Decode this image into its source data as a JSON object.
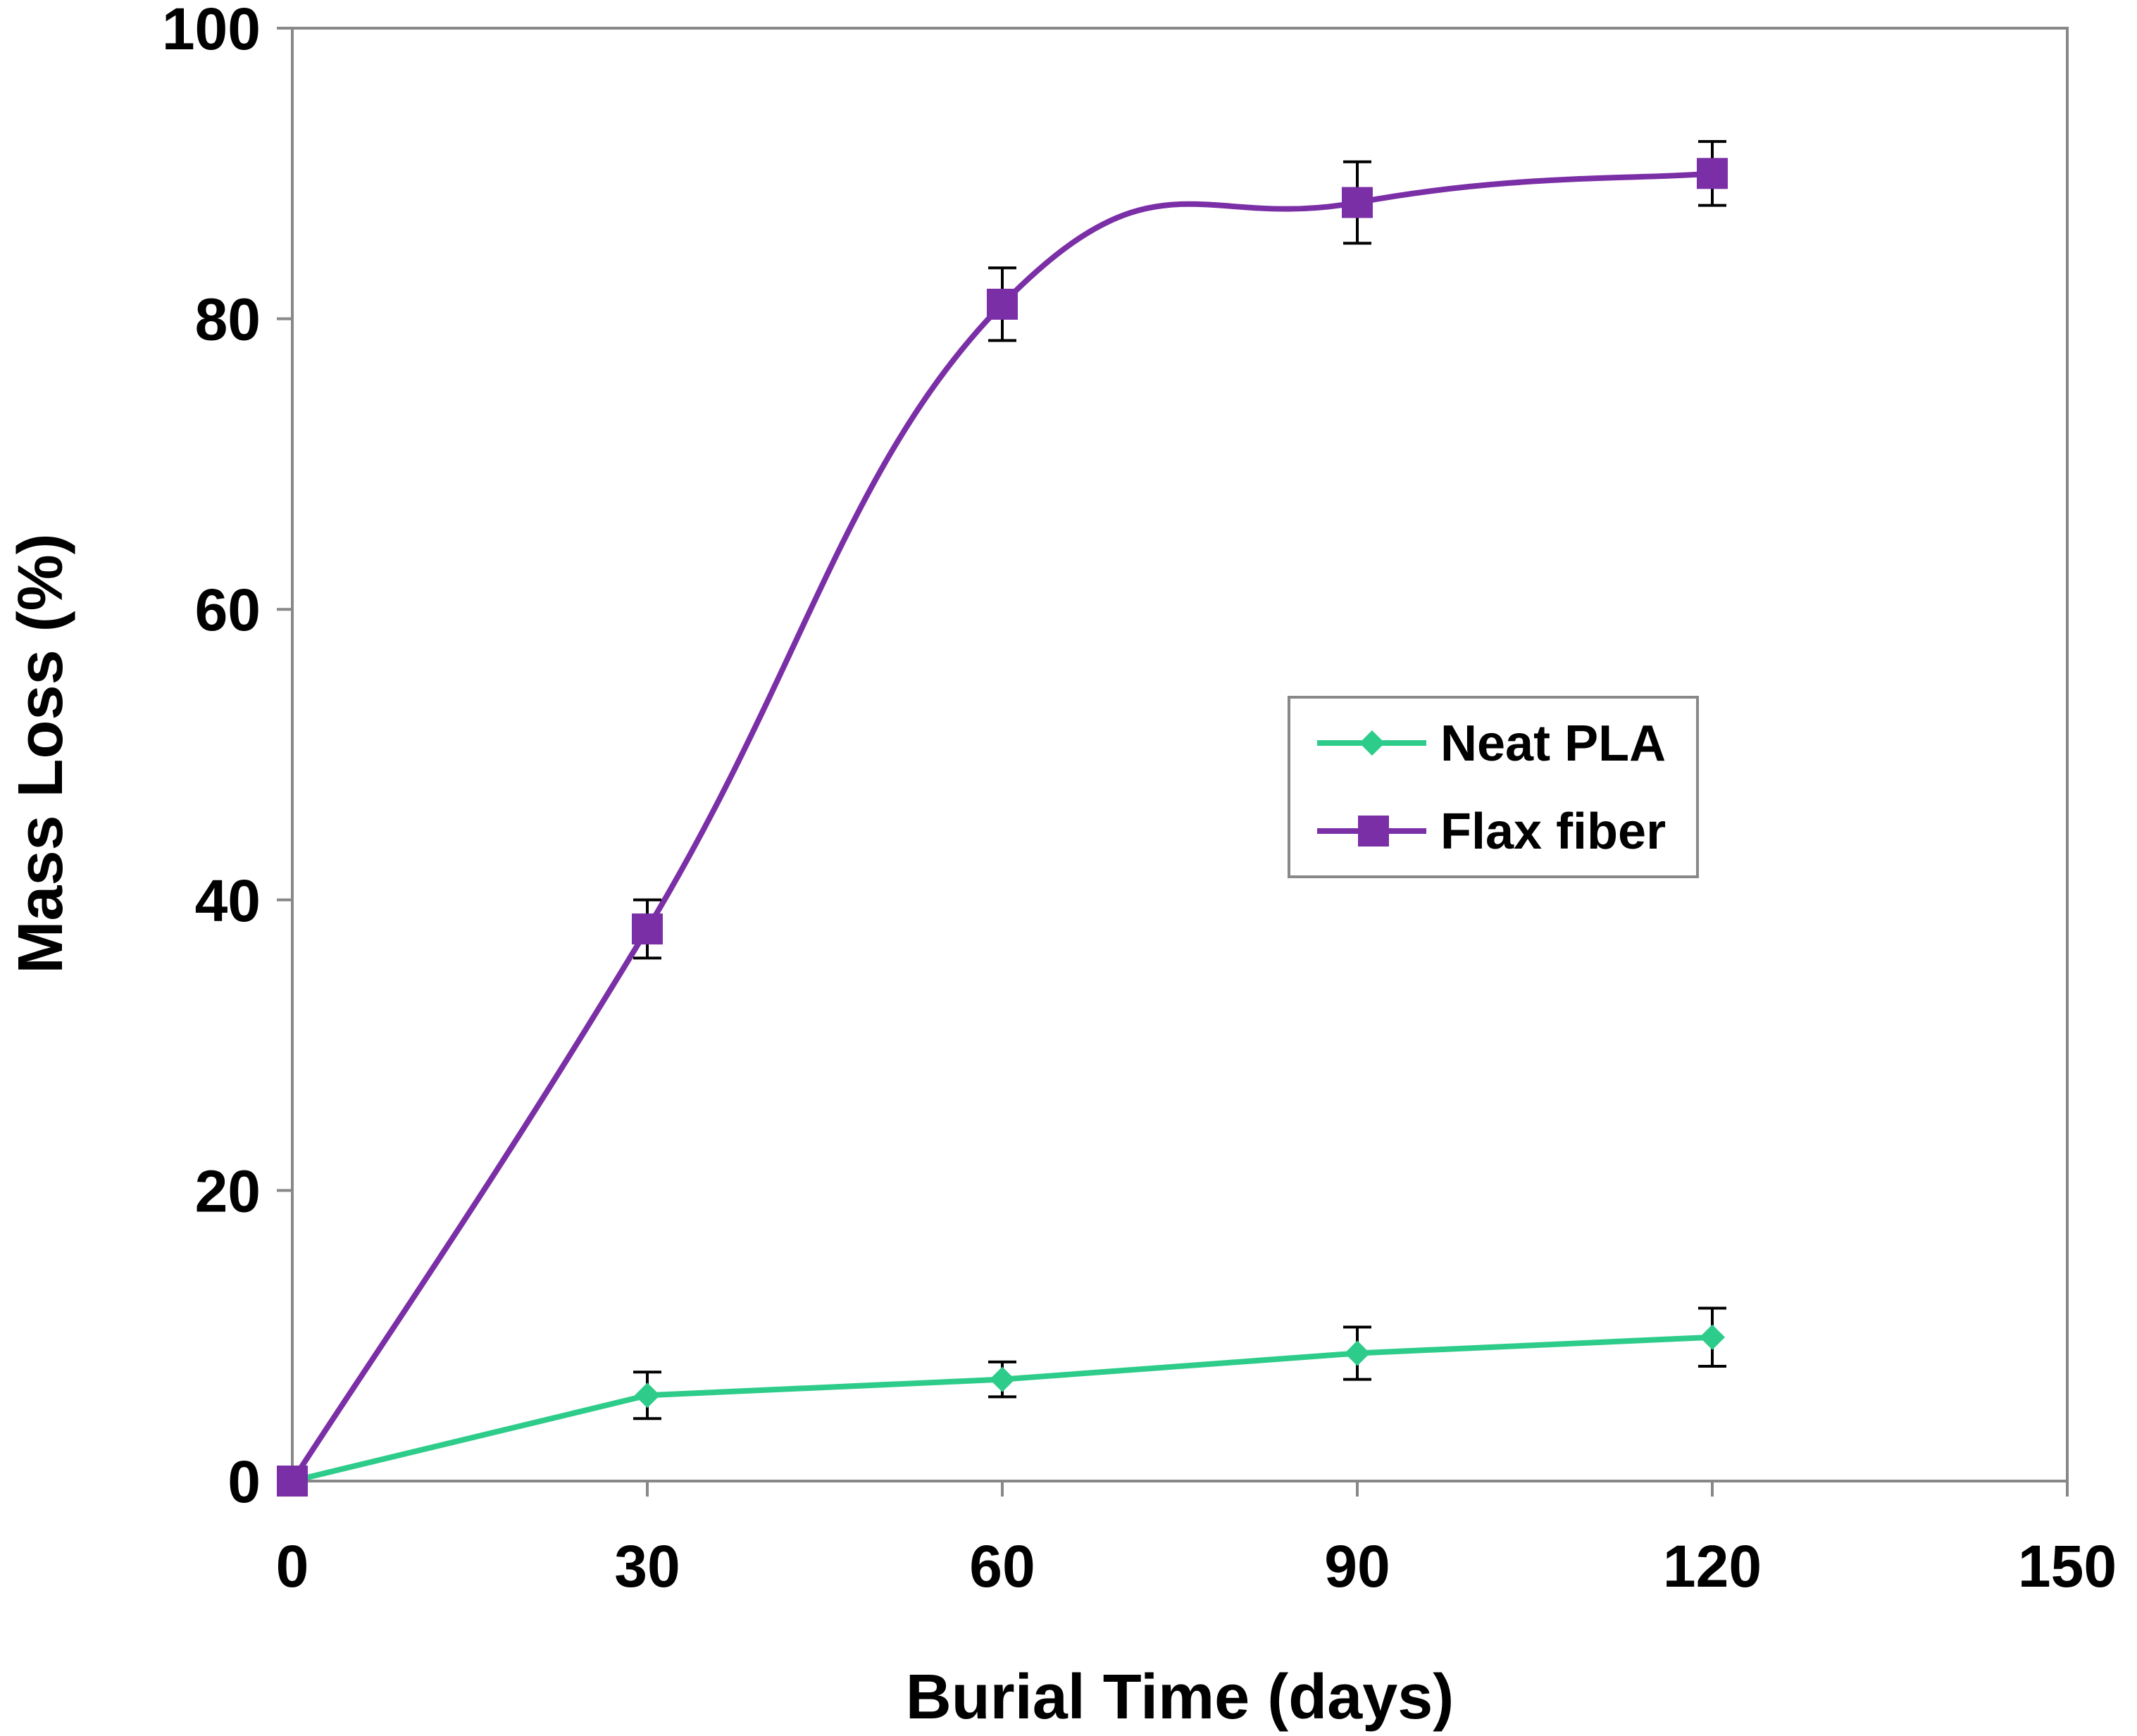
{
  "chart_data": {
    "type": "line",
    "title": "",
    "xlabel": "Burial Time (days)",
    "ylabel": "Mass Loss (%)",
    "xlim": [
      0,
      150
    ],
    "ylim": [
      0,
      100
    ],
    "x_ticks": [
      0,
      30,
      60,
      90,
      120,
      150
    ],
    "y_ticks": [
      0,
      20,
      40,
      60,
      80,
      100
    ],
    "grid": false,
    "legend_position": "center-right",
    "series": [
      {
        "name": "Neat PLA",
        "color": "#2ecc8a",
        "marker": "diamond",
        "smooth": false,
        "x": [
          0,
          30,
          60,
          90,
          120
        ],
        "y": [
          0,
          5.9,
          7.0,
          8.8,
          9.9
        ],
        "error": [
          0,
          1.6,
          1.2,
          1.8,
          2.0
        ]
      },
      {
        "name": "Flax fiber",
        "color": "#7b2fa6",
        "marker": "square",
        "smooth": true,
        "x": [
          0,
          30,
          60,
          90,
          120
        ],
        "y": [
          0,
          38.0,
          81.0,
          88.0,
          90.0
        ],
        "error": [
          0,
          2.0,
          2.5,
          2.8,
          2.2
        ]
      }
    ]
  }
}
